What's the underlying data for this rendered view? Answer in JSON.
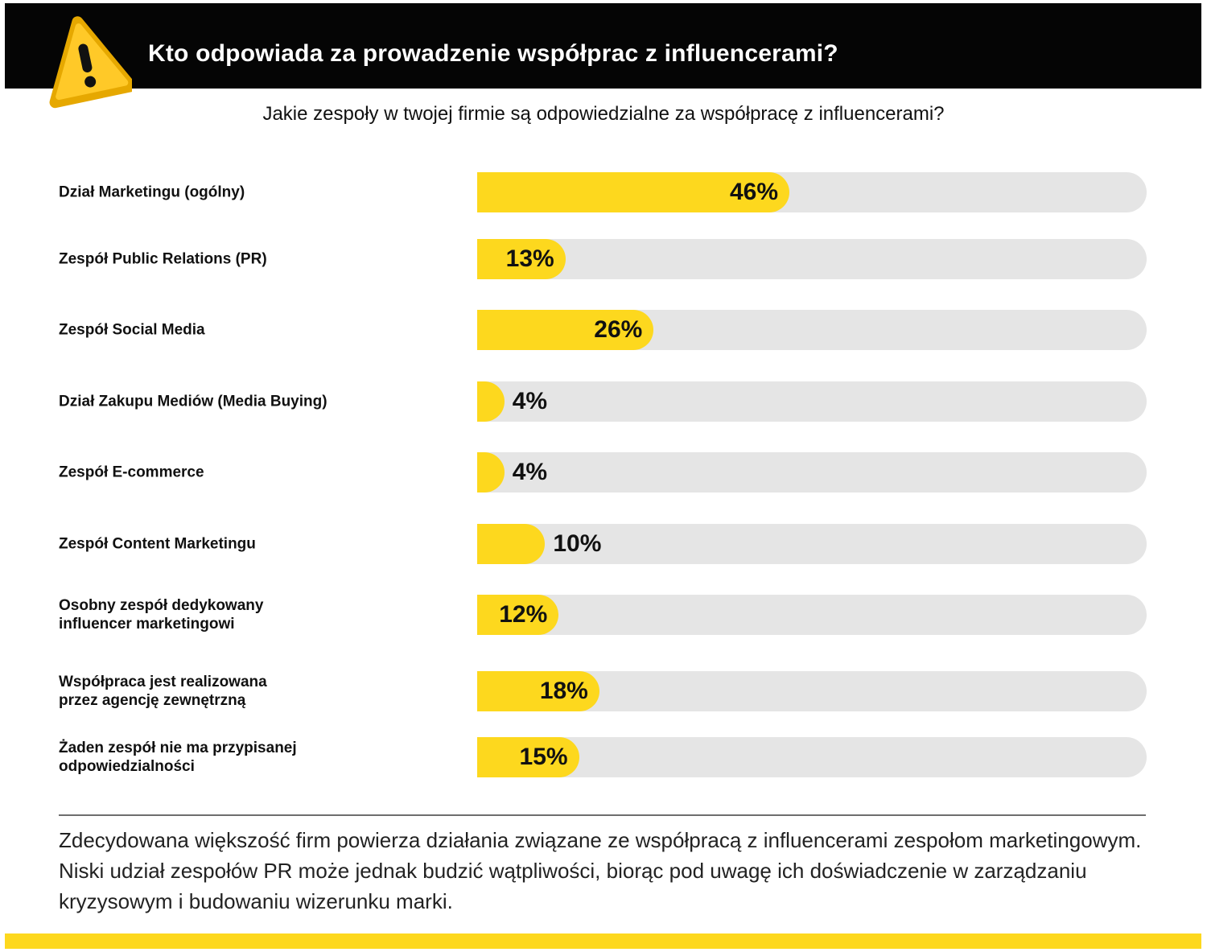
{
  "header": {
    "title": "Kto odpowiada za prowadzenie współprac z influencerami?",
    "background_color": "#050505",
    "icon": "warning-icon"
  },
  "subtitle": "Jakie zespoły w twojej firmie są odpowiedzialne za współpracę z influencerami?",
  "chart_data": {
    "type": "bar",
    "orientation": "horizontal",
    "title": "Jakie zespoły w twojej firmie są odpowiedzialne za współpracę z influencerami?",
    "categories": [
      "Dział Marketingu (ogólny)",
      "Zespół Public Relations (PR)",
      " Zespół Social Media",
      "Dział Zakupu Mediów (Media Buying)",
      "Zespół E-commerce",
      "Zespół Content Marketingu",
      "Osobny zespół dedykowany\ninfluencer marketingowi",
      "Współpraca jest realizowana\n przez agencję zewnętrzną",
      "Żaden zespół nie ma przypisanej\nodpowiedzialności"
    ],
    "values": [
      46,
      13,
      26,
      4,
      4,
      10,
      12,
      18,
      15
    ],
    "value_labels": [
      "46%",
      "13%",
      "26%",
      "4%",
      "4%",
      "10%",
      "12%",
      "18%",
      "15%"
    ],
    "unit": "%",
    "xlim": [
      0,
      100
    ],
    "bar_color": "#fdd81e",
    "track_color": "#e5e5e5",
    "grid": false,
    "legend": "none"
  },
  "summary": "Zdecydowana większość firm powierza działania związane ze współpracą z influencerami zespołom marketingowym. Niski udział zespołów PR może jednak budzić wątpliwości, biorąc pod uwagę ich doświadczenie w zarządzaniu kryzysowym i budowaniu wizerunku marki.",
  "footer": {
    "bar_color": "#fdd81e"
  }
}
